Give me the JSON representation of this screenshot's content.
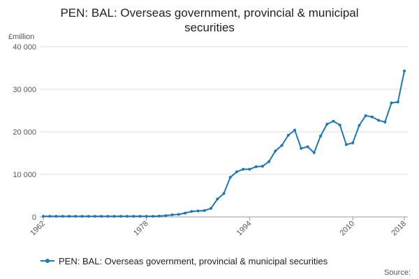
{
  "chart_data": {
    "type": "line",
    "title": [
      "PEN: BAL: Overseas government, provincial & municipal",
      "securities"
    ],
    "y_unit": "£million",
    "x": [
      1962,
      1963,
      1964,
      1965,
      1966,
      1967,
      1968,
      1969,
      1970,
      1971,
      1972,
      1973,
      1974,
      1975,
      1976,
      1977,
      1978,
      1979,
      1980,
      1981,
      1982,
      1983,
      1984,
      1985,
      1986,
      1987,
      1988,
      1989,
      1990,
      1991,
      1992,
      1993,
      1994,
      1995,
      1996,
      1997,
      1998,
      1999,
      2000,
      2001,
      2002,
      2003,
      2004,
      2005,
      2006,
      2007,
      2008,
      2009,
      2010,
      2011,
      2012,
      2013,
      2014,
      2015,
      2016,
      2017,
      2018
    ],
    "series": [
      {
        "name": "PEN: BAL: Overseas government, provincial & municipal securities",
        "color": "#1f77b4",
        "values": [
          150,
          150,
          150,
          150,
          150,
          150,
          150,
          150,
          150,
          150,
          150,
          150,
          150,
          150,
          150,
          150,
          150,
          150,
          200,
          300,
          500,
          600,
          900,
          1300,
          1400,
          1500,
          2000,
          4200,
          5500,
          9300,
          10600,
          11200,
          11200,
          11800,
          11900,
          13000,
          15500,
          16800,
          19200,
          20400,
          16100,
          16500,
          15100,
          19000,
          21800,
          22500,
          21600,
          17000,
          17400,
          21500,
          23800,
          23500,
          22700,
          22300,
          26800,
          27000,
          34300
        ]
      }
    ],
    "xlim": [
      1962,
      2018
    ],
    "xticks": [
      1962,
      1978,
      1994,
      2010,
      2018
    ],
    "ylim": [
      0,
      40000
    ],
    "yticks": [
      0,
      {
        "value": 10000,
        "label": "10 000"
      },
      {
        "value": 20000,
        "label": "20 000"
      },
      {
        "value": 30000,
        "label": "30 000"
      },
      {
        "value": 40000,
        "label": "40 000"
      }
    ],
    "grid": true,
    "legend": "bottom",
    "source": "Source:"
  }
}
